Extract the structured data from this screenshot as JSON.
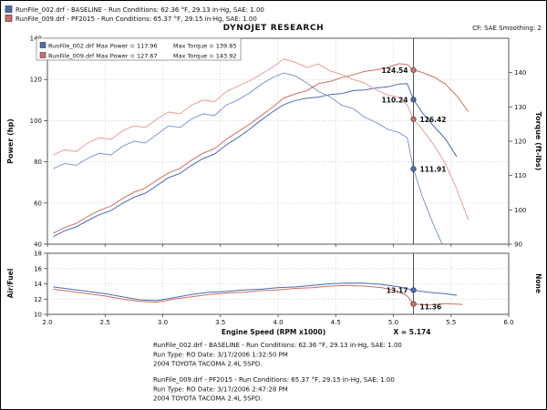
{
  "header": {
    "legend_lines": [
      "RunFile_002.drf - BASELINE -  Run Conditions: 62.36 °F, 29.13 in-Hg, SAE: 1.00",
      "RunFile_009.drf - PF2015 -  Run Conditions: 65.37 °F, 29.15 in-Hg, SAE: 1.00"
    ],
    "title": "DYNOJET RESEARCH",
    "correction": "CF: SAE  Smoothing: 2"
  },
  "legend_box": {
    "rows": [
      {
        "file_power": "RunFile_002.drf Max Power = 117.96",
        "max_torque": "Max Torque = 139.85"
      },
      {
        "file_power": "RunFile_009.drf Max Power = 127.67",
        "max_torque": "Max Torque = 143.92"
      }
    ]
  },
  "axes": {
    "power_label": "Power (hp)",
    "torque_label": "Torque (ft-lbs)",
    "af_label": "Air/Fuel",
    "right_bottom_label": "None",
    "x_label": "Engine Speed (RPM x1000)",
    "cursor_label": "X = 5.174",
    "power_ticks": [
      "140",
      "120",
      "100",
      "80",
      "60",
      "40"
    ],
    "torque_ticks": [
      "140",
      "130",
      "120",
      "110",
      "100",
      "90"
    ],
    "af_ticks": [
      "18",
      "16",
      "14",
      "12",
      "10"
    ],
    "x_ticks": [
      "2.0",
      "2.5",
      "3.0",
      "3.5",
      "4.0",
      "4.5",
      "5.0",
      "5.5",
      "6.0"
    ]
  },
  "cursor": {
    "x": "5.174",
    "power_red": "124.54",
    "power_blue": "110.24",
    "torque_red": "126.42",
    "torque_blue": "111.91",
    "af_blue": "13.17",
    "af_red": "11.36"
  },
  "footer": {
    "run1": [
      "RunFile_002.drf - BASELINE -  Run Conditions: 62.36 °F, 29.13 in-Hg, SAE: 1.00",
      "Run Type: RO  Date: 3/17/2006 1:32:50 PM",
      "2004 TOYOTA TACOMA 2.4L 5SPD."
    ],
    "run2": [
      "RunFile_009.drf - PF2015 -  Run Conditions: 65.37 °F, 29.15 in-Hg, SAE: 1.00",
      "Run Type: RO  Date: 3/17/2006 2:47:28 PM",
      "2004 TOYOTA TACOMA 2.4L 5SPD."
    ]
  },
  "colors": {
    "run1": "#4a6cb4",
    "run1_torque": "#7e97cf",
    "run2": "#cf6e62",
    "run2_torque": "#e3a097",
    "footer_blue": "#2a32b0",
    "footer_red": "#c23b30",
    "grid": "#cfcfcf",
    "cursor": "#555555"
  },
  "chart_data": [
    {
      "type": "line",
      "title": "Power and Torque vs Engine Speed",
      "xlabel": "Engine Speed (RPM x1000)",
      "xlim": [
        2.0,
        6.0
      ],
      "left_axis": {
        "label": "Power (hp)",
        "range": [
          40,
          140
        ],
        "ticks": [
          40,
          60,
          80,
          100,
          120,
          140
        ]
      },
      "right_axis": {
        "label": "Torque (ft-lbs)",
        "range": [
          90,
          150
        ],
        "ticks": [
          90,
          100,
          110,
          120,
          130,
          140
        ]
      },
      "grid": true,
      "cursor_x": 5.174,
      "cursor_values": {
        "power_red": 124.54,
        "power_blue": 110.24,
        "torque_red": 126.42,
        "torque_blue": 111.91
      },
      "max_values": {
        "run1_max_power": 117.96,
        "run1_max_torque": 139.85,
        "run2_max_power": 127.67,
        "run2_max_torque": 143.92
      },
      "series": [
        {
          "id": "run1-power",
          "name": "RunFile_002 Power (hp)",
          "axis": "left",
          "color": "#4a6cb4",
          "points": [
            [
              2.05,
              43.7
            ],
            [
              2.15,
              46.5
            ],
            [
              2.25,
              48.4
            ],
            [
              2.35,
              51.5
            ],
            [
              2.45,
              54.3
            ],
            [
              2.55,
              56.3
            ],
            [
              2.65,
              59.8
            ],
            [
              2.75,
              62.8
            ],
            [
              2.85,
              64.8
            ],
            [
              2.95,
              68.5
            ],
            [
              3.05,
              72.3
            ],
            [
              3.15,
              74.4
            ],
            [
              3.25,
              78.3
            ],
            [
              3.35,
              81.6
            ],
            [
              3.45,
              83.8
            ],
            [
              3.55,
              88.2
            ],
            [
              3.65,
              91.7
            ],
            [
              3.75,
              95.7
            ],
            [
              3.85,
              100.1
            ],
            [
              3.95,
              104.2
            ],
            [
              4.05,
              107.8
            ],
            [
              4.15,
              109.8
            ],
            [
              4.25,
              110.9
            ],
            [
              4.35,
              111.4
            ],
            [
              4.45,
              112.7
            ],
            [
              4.55,
              113.1
            ],
            [
              4.65,
              114.6
            ],
            [
              4.75,
              114.9
            ],
            [
              4.85,
              115.9
            ],
            [
              4.95,
              116.4
            ],
            [
              5.05,
              117.8
            ],
            [
              5.12,
              117.96
            ],
            [
              5.174,
              110.24
            ],
            [
              5.25,
              104.0
            ],
            [
              5.35,
              97.3
            ],
            [
              5.45,
              91.3
            ],
            [
              5.55,
              82.4
            ]
          ]
        },
        {
          "id": "run1-torque",
          "name": "RunFile_002 Torque (ft-lbs)",
          "axis": "right",
          "color": "#7e97cf",
          "points": [
            [
              2.05,
              112
            ],
            [
              2.15,
              113.5
            ],
            [
              2.25,
              113
            ],
            [
              2.35,
              115
            ],
            [
              2.45,
              116.5
            ],
            [
              2.55,
              116
            ],
            [
              2.65,
              118.5
            ],
            [
              2.75,
              120
            ],
            [
              2.85,
              119.5
            ],
            [
              2.95,
              122
            ],
            [
              3.05,
              124.5
            ],
            [
              3.15,
              124
            ],
            [
              3.25,
              126.5
            ],
            [
              3.35,
              128
            ],
            [
              3.45,
              127.5
            ],
            [
              3.55,
              130.5
            ],
            [
              3.65,
              132
            ],
            [
              3.75,
              134
            ],
            [
              3.85,
              136.5
            ],
            [
              3.95,
              138.5
            ],
            [
              4.05,
              139.85
            ],
            [
              4.15,
              139
            ],
            [
              4.25,
              137
            ],
            [
              4.35,
              134.5
            ],
            [
              4.45,
              133
            ],
            [
              4.55,
              130.5
            ],
            [
              4.65,
              129.5
            ],
            [
              4.75,
              127
            ],
            [
              4.85,
              125.5
            ],
            [
              4.95,
              123.5
            ],
            [
              5.05,
              122.5
            ],
            [
              5.12,
              121
            ],
            [
              5.174,
              111.91
            ],
            [
              5.25,
              104
            ],
            [
              5.35,
              95.5
            ],
            [
              5.45,
              88
            ],
            [
              5.55,
              78
            ]
          ]
        },
        {
          "id": "run2-power",
          "name": "RunFile_009 Power (hp)",
          "axis": "left",
          "color": "#cf6e62",
          "points": [
            [
              2.05,
              45.3
            ],
            [
              2.15,
              48.1
            ],
            [
              2.25,
              50.1
            ],
            [
              2.35,
              53.5
            ],
            [
              2.45,
              56.4
            ],
            [
              2.55,
              58.5
            ],
            [
              2.65,
              62.1
            ],
            [
              2.75,
              65.2
            ],
            [
              2.85,
              67.3
            ],
            [
              2.95,
              71.1
            ],
            [
              3.05,
              74.6
            ],
            [
              3.15,
              76.8
            ],
            [
              3.25,
              80.8
            ],
            [
              3.35,
              84.2
            ],
            [
              3.45,
              86.4
            ],
            [
              3.55,
              90.9
            ],
            [
              3.65,
              94.5
            ],
            [
              3.75,
              98.2
            ],
            [
              3.85,
              102.3
            ],
            [
              3.95,
              106.4
            ],
            [
              4.05,
              111.0
            ],
            [
              4.15,
              113.0
            ],
            [
              4.25,
              114.5
            ],
            [
              4.35,
              118.0
            ],
            [
              4.45,
              119.0
            ],
            [
              4.55,
              120.9
            ],
            [
              4.65,
              122.2
            ],
            [
              4.75,
              123.9
            ],
            [
              4.85,
              124.7
            ],
            [
              4.95,
              125.8
            ],
            [
              5.05,
              127.67
            ],
            [
              5.12,
              127.2
            ],
            [
              5.174,
              124.54
            ],
            [
              5.25,
              123.4
            ],
            [
              5.35,
              121.2
            ],
            [
              5.45,
              117.8
            ],
            [
              5.55,
              112.0
            ],
            [
              5.65,
              104.4
            ]
          ]
        },
        {
          "id": "run2-torque",
          "name": "RunFile_009 Torque (ft-lbs)",
          "axis": "right",
          "color": "#e3a097",
          "points": [
            [
              2.05,
              116
            ],
            [
              2.15,
              117.5
            ],
            [
              2.25,
              117
            ],
            [
              2.35,
              119.5
            ],
            [
              2.45,
              121
            ],
            [
              2.55,
              120.5
            ],
            [
              2.65,
              123
            ],
            [
              2.75,
              124.5
            ],
            [
              2.85,
              124
            ],
            [
              2.95,
              126.5
            ],
            [
              3.05,
              128.5
            ],
            [
              3.15,
              128
            ],
            [
              3.25,
              130.5
            ],
            [
              3.35,
              132
            ],
            [
              3.45,
              131.5
            ],
            [
              3.55,
              134.5
            ],
            [
              3.65,
              136
            ],
            [
              3.75,
              137.5
            ],
            [
              3.85,
              139.5
            ],
            [
              3.95,
              141.5
            ],
            [
              4.05,
              143.92
            ],
            [
              4.15,
              143
            ],
            [
              4.25,
              141.5
            ],
            [
              4.35,
              142.5
            ],
            [
              4.45,
              140.5
            ],
            [
              4.55,
              139.5
            ],
            [
              4.65,
              138
            ],
            [
              4.75,
              137
            ],
            [
              4.85,
              135
            ],
            [
              4.95,
              133.5
            ],
            [
              5.05,
              132.8
            ],
            [
              5.12,
              130.5
            ],
            [
              5.174,
              126.42
            ],
            [
              5.25,
              123.5
            ],
            [
              5.35,
              119
            ],
            [
              5.45,
              113.5
            ],
            [
              5.55,
              106
            ],
            [
              5.65,
              97
            ]
          ]
        }
      ]
    },
    {
      "type": "line",
      "title": "Air/Fuel vs Engine Speed",
      "xlabel": "Engine Speed (RPM x1000)",
      "xlim": [
        2.0,
        6.0
      ],
      "left_axis": {
        "label": "Air/Fuel",
        "range": [
          10,
          18
        ],
        "ticks": [
          10,
          12,
          14,
          16,
          18
        ]
      },
      "right_axis": {
        "label": "None"
      },
      "grid": true,
      "cursor_x": 5.174,
      "cursor_values": {
        "af_blue": 13.17,
        "af_red": 11.36
      },
      "series": [
        {
          "id": "run1-af",
          "name": "RunFile_002 Air/Fuel",
          "axis": "left",
          "color": "#4a6cb4",
          "points": [
            [
              2.05,
              13.6
            ],
            [
              2.2,
              13.3
            ],
            [
              2.35,
              13.0
            ],
            [
              2.5,
              12.7
            ],
            [
              2.65,
              12.3
            ],
            [
              2.8,
              11.9
            ],
            [
              2.95,
              11.8
            ],
            [
              3.1,
              12.2
            ],
            [
              3.25,
              12.6
            ],
            [
              3.4,
              12.9
            ],
            [
              3.55,
              13.0
            ],
            [
              3.7,
              13.2
            ],
            [
              3.85,
              13.3
            ],
            [
              4.0,
              13.5
            ],
            [
              4.15,
              13.6
            ],
            [
              4.3,
              13.8
            ],
            [
              4.45,
              14.0
            ],
            [
              4.6,
              14.1
            ],
            [
              4.75,
              14.1
            ],
            [
              4.9,
              13.9
            ],
            [
              5.05,
              13.6
            ],
            [
              5.174,
              13.17
            ],
            [
              5.3,
              12.9
            ],
            [
              5.45,
              12.7
            ],
            [
              5.55,
              12.5
            ]
          ]
        },
        {
          "id": "run2-af",
          "name": "RunFile_009 Air/Fuel",
          "axis": "left",
          "color": "#cf6e62",
          "points": [
            [
              2.05,
              13.3
            ],
            [
              2.2,
              13.0
            ],
            [
              2.35,
              12.7
            ],
            [
              2.5,
              12.4
            ],
            [
              2.65,
              12.0
            ],
            [
              2.8,
              11.7
            ],
            [
              2.95,
              11.6
            ],
            [
              3.1,
              12.0
            ],
            [
              3.25,
              12.3
            ],
            [
              3.4,
              12.6
            ],
            [
              3.55,
              12.8
            ],
            [
              3.7,
              12.9
            ],
            [
              3.85,
              13.1
            ],
            [
              4.0,
              13.2
            ],
            [
              4.15,
              13.4
            ],
            [
              4.3,
              13.5
            ],
            [
              4.45,
              13.7
            ],
            [
              4.6,
              13.8
            ],
            [
              4.75,
              13.7
            ],
            [
              4.9,
              13.5
            ],
            [
              5.05,
              13.0
            ],
            [
              5.12,
              12.4
            ],
            [
              5.174,
              11.36
            ],
            [
              5.3,
              11.2
            ],
            [
              5.45,
              11.4
            ],
            [
              5.6,
              11.3
            ]
          ]
        }
      ]
    }
  ]
}
